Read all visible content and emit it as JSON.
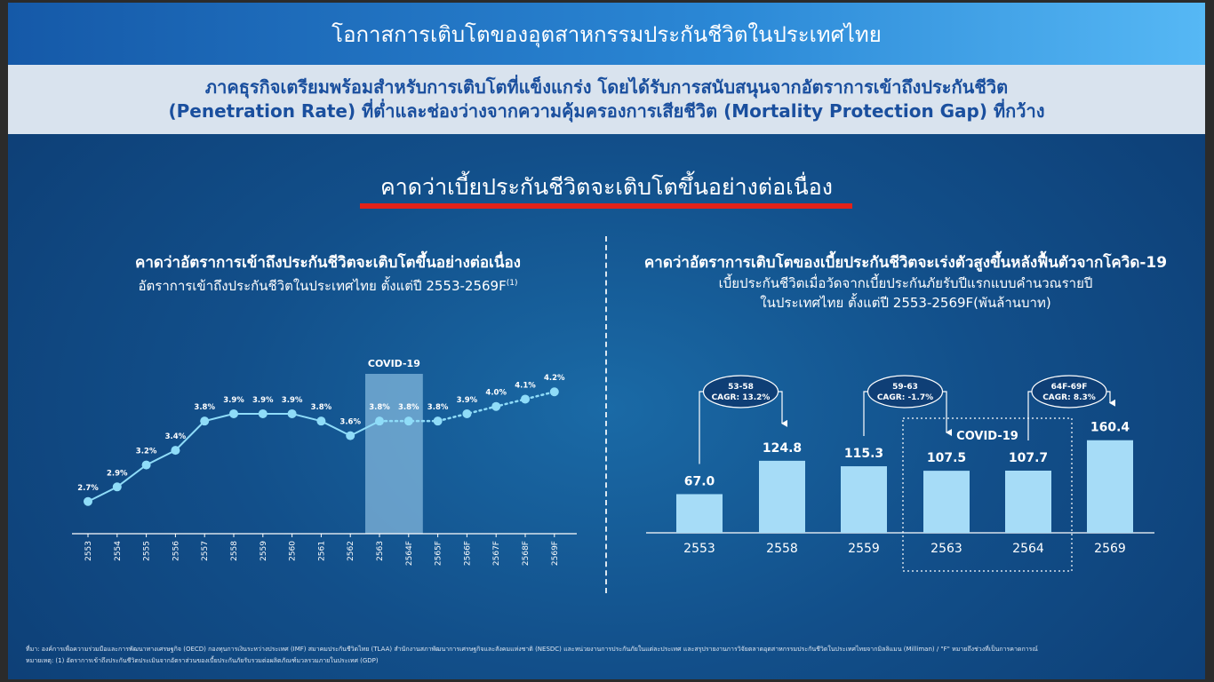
{
  "page": {
    "title": "โอกาสการเติบโตของอุตสาหกรรมประกันชีวิตในประเทศไทย",
    "subtitle_line1": "ภาคธุรกิจเตรียมพร้อมสำหรับการเติบโตที่แข็งแกร่ง โดยได้รับการสนับสนุนจากอัตราการเข้าถึงประกันชีวิต",
    "subtitle_line2": "(Penetration Rate) ที่ต่ำและช่องว่างจากความคุ้มครองการเสียชีวิต (Mortality Protection Gap) ที่กว้าง",
    "headline": "คาดว่าเบี้ยประกันชีวิตจะเติบโตขึ้นอย่างต่อเนื่อง",
    "footnote_line1": "ที่มา: องค์การเพื่อความร่วมมือและการพัฒนาทางเศรษฐกิจ (OECD) กองทุนการเงินระหว่างประเทศ (IMF) สมาคมประกันชีวิตไทย (TLAA) สำนักงานสภาพัฒนาการเศรษฐกิจและสังคมแห่งชาติ (NESDC) และหน่วยงานการประกันภัยในแต่ละประเทศ และสรุปรายงานการวิจัยตลาดอุตสาหกรรมประกันชีวิตในประเทศไทยจากมิลลิแมน (Milliman) / \"F\" หมายถึงช่วงที่เป็นการคาดการณ์",
    "footnote_line2": "หมายเหตุ: (1) อัตราการเข้าถึงประกันชีวิตประเมินจากอัตราส่วนของเบี้ยประกันภัยรับรวมต่อผลิตภัณฑ์มวลรวมภายในประเทศ (GDP)"
  },
  "chart_data": [
    {
      "type": "line",
      "title": "คาดว่าอัตราการเข้าถึงประกันชีวิตจะเติบโตขึ้นอย่างต่อเนื่อง",
      "subtitle": "อัตราการเข้าถึงประกันชีวิตในประเทศไทย ตั้งแต่ปี 2553-2569F",
      "subtitle_note": "(1)",
      "categories": [
        "2553",
        "2554",
        "2555",
        "2556",
        "2557",
        "2558",
        "2559",
        "2560",
        "2561",
        "2562",
        "2563",
        "2564F",
        "2565F",
        "2566F",
        "2567F",
        "2568F",
        "2569F"
      ],
      "values": [
        2.7,
        2.9,
        3.2,
        3.4,
        3.8,
        3.9,
        3.9,
        3.9,
        3.8,
        3.6,
        3.8,
        3.8,
        3.8,
        3.9,
        4.0,
        4.1,
        4.2
      ],
      "value_labels": [
        "2.7%",
        "2.9%",
        "3.2%",
        "3.4%",
        "3.8%",
        "3.9%",
        "3.9%",
        "3.9%",
        "3.8%",
        "3.6%",
        "3.8%",
        "3.8%",
        "3.8%",
        "3.9%",
        "4.0%",
        "4.1%",
        "4.2%"
      ],
      "highlight": {
        "label": "COVID-19",
        "from": "2563",
        "to": "2564F"
      },
      "forecast_from": "2563",
      "ylim": [
        2.0,
        4.6
      ],
      "colors": {
        "line": "#8fdcf8",
        "highlight": "#a9d8f5"
      }
    },
    {
      "type": "bar",
      "title": "คาดว่าอัตราการเติบโตของเบี้ยประกันชีวิตจะเร่งตัวสูงขึ้นหลังฟื้นตัวจากโควิด-19",
      "subtitle_line1": "เบี้ยประกันชีวิตเมื่อวัดจากเบี้ยประกันภัยรับปีแรกแบบคำนวณรายปี",
      "subtitle_line2": "ในประเทศไทย ตั้งแต่ปี 2553-2569F(พันล้านบาท)",
      "categories": [
        "2553",
        "2558",
        "2559",
        "2563",
        "2564",
        "2569"
      ],
      "values": [
        67.0,
        124.8,
        115.3,
        107.5,
        107.7,
        160.4
      ],
      "value_labels": [
        "67.0",
        "124.8",
        "115.3",
        "107.5",
        "107.7",
        "160.4"
      ],
      "cagr": [
        {
          "period": "53-58",
          "label": "CAGR: 13.2%",
          "from": 0,
          "to": 1
        },
        {
          "period": "59-63",
          "label": "CAGR: -1.7%",
          "from": 2,
          "to": 3
        },
        {
          "period": "64F-69F",
          "label": "CAGR: 8.3%",
          "from": 4,
          "to": 5
        }
      ],
      "highlight": {
        "label": "COVID-19",
        "from": "2563",
        "to": "2564"
      },
      "ylim": [
        0,
        180
      ],
      "colors": {
        "bar": "#a6dcf7"
      }
    }
  ]
}
